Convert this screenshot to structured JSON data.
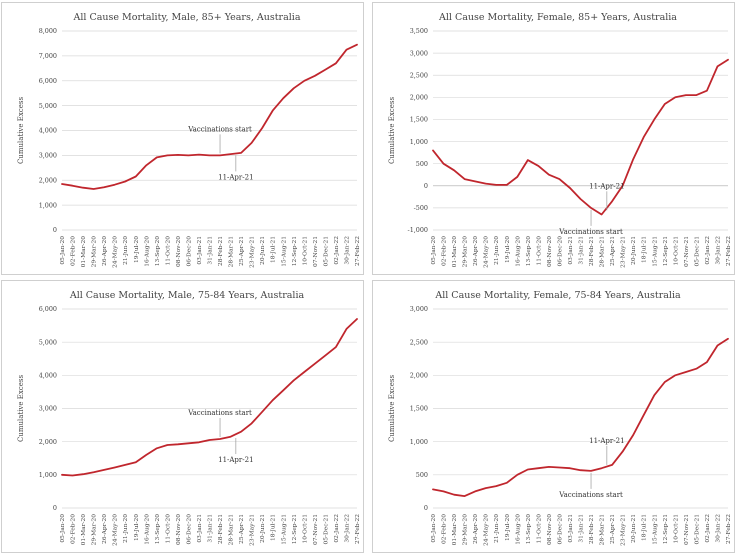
{
  "colors": {
    "series": "#c0262d",
    "grid": "#d9d9d9",
    "text": "#444444"
  },
  "dates": [
    "05-Jan-20",
    "02-Feb-20",
    "01-Mar-20",
    "29-Mar-20",
    "26-Apr-20",
    "24-May-20",
    "21-Jun-20",
    "19-Jul-20",
    "16-Aug-20",
    "13-Sep-20",
    "11-Oct-20",
    "08-Nov-20",
    "06-Dec-20",
    "03-Jan-21",
    "31-Jan-21",
    "28-Feb-21",
    "28-Mar-21",
    "25-Apr-21",
    "23-May-21",
    "20-Jun-21",
    "18-Jul-21",
    "15-Aug-21",
    "12-Sep-21",
    "10-Oct-21",
    "07-Nov-21",
    "05-Dec-21",
    "02-Jan-22",
    "30-Jan-22",
    "27-Feb-22"
  ],
  "chart_data": [
    {
      "type": "line",
      "title": "All Cause Mortality, Male, 85+ Years, Australia",
      "xlabel": "",
      "ylabel": "Cumulative Excess",
      "ylim": [
        0,
        8000
      ],
      "yticks": [
        "0",
        "1,000",
        "2,000",
        "3,000",
        "4,000",
        "5,000",
        "6,000",
        "7,000",
        "8,000"
      ],
      "x": [
        "05-Jan-20",
        "02-Feb-20",
        "01-Mar-20",
        "29-Mar-20",
        "26-Apr-20",
        "24-May-20",
        "21-Jun-20",
        "19-Jul-20",
        "16-Aug-20",
        "13-Sep-20",
        "11-Oct-20",
        "08-Nov-20",
        "06-Dec-20",
        "03-Jan-21",
        "31-Jan-21",
        "28-Feb-21",
        "28-Mar-21",
        "25-Apr-21",
        "23-May-21",
        "20-Jun-21",
        "18-Jul-21",
        "15-Aug-21",
        "12-Sep-21",
        "10-Oct-21",
        "07-Nov-21",
        "05-Dec-21",
        "02-Jan-22",
        "30-Jan-22",
        "27-Feb-22"
      ],
      "values": [
        1850,
        1780,
        1700,
        1650,
        1720,
        1820,
        1950,
        2150,
        2600,
        2920,
        3000,
        3020,
        3000,
        3030,
        3000,
        3000,
        3050,
        3100,
        3500,
        4100,
        4800,
        5300,
        5700,
        6000,
        6200,
        6450,
        6700,
        7250,
        7450
      ],
      "grid": true,
      "legend": "none",
      "annotations": [
        {
          "text": "Vaccinations start",
          "x": "28-Feb-21",
          "y": 3000,
          "position": "above"
        },
        {
          "text": "11-Apr-21",
          "x": "11-Apr-21",
          "y": 3080,
          "position": "below"
        }
      ]
    },
    {
      "type": "line",
      "title": "All Cause Mortality, Female, 85+ Years, Australia",
      "xlabel": "",
      "ylabel": "Cumulative Excess",
      "ylim": [
        -1000,
        3500
      ],
      "yticks": [
        "-1,000",
        "-500",
        "0",
        "500",
        "1,000",
        "1,500",
        "2,000",
        "2,500",
        "3,000",
        "3,500"
      ],
      "x": [
        "05-Jan-20",
        "02-Feb-20",
        "01-Mar-20",
        "29-Mar-20",
        "26-Apr-20",
        "24-May-20",
        "21-Jun-20",
        "19-Jul-20",
        "16-Aug-20",
        "13-Sep-20",
        "11-Oct-20",
        "08-Nov-20",
        "06-Dec-20",
        "03-Jan-21",
        "31-Jan-21",
        "28-Feb-21",
        "28-Mar-21",
        "25-Apr-21",
        "23-May-21",
        "20-Jun-21",
        "18-Jul-21",
        "15-Aug-21",
        "12-Sep-21",
        "10-Oct-21",
        "07-Nov-21",
        "05-Dec-21",
        "02-Jan-22",
        "30-Jan-22",
        "27-Feb-22"
      ],
      "values": [
        800,
        500,
        350,
        150,
        100,
        50,
        20,
        20,
        200,
        580,
        450,
        250,
        150,
        -50,
        -300,
        -500,
        -650,
        -350,
        0,
        600,
        1100,
        1500,
        1850,
        2000,
        2050,
        2050,
        2150,
        2700,
        2850
      ],
      "grid": true,
      "legend": "none",
      "annotations": [
        {
          "text": "11-Apr-21",
          "x": "11-Apr-21",
          "y": -600,
          "position": "above"
        },
        {
          "text": "Vaccinations start",
          "x": "28-Feb-21",
          "y": -500,
          "position": "below"
        }
      ]
    },
    {
      "type": "line",
      "title": "All Cause Mortality, Male, 75-84 Years, Australia",
      "xlabel": "",
      "ylabel": "Cumulative Excess",
      "ylim": [
        0,
        6000
      ],
      "yticks": [
        "0",
        "1,000",
        "2,000",
        "3,000",
        "4,000",
        "5,000",
        "6,000"
      ],
      "x": [
        "05-Jan-20",
        "02-Feb-20",
        "01-Mar-20",
        "29-Mar-20",
        "26-Apr-20",
        "24-May-20",
        "21-Jun-20",
        "19-Jul-20",
        "16-Aug-20",
        "13-Sep-20",
        "11-Oct-20",
        "08-Nov-20",
        "06-Dec-20",
        "03-Jan-21",
        "31-Jan-21",
        "28-Feb-21",
        "28-Mar-21",
        "25-Apr-21",
        "23-May-21",
        "20-Jun-21",
        "18-Jul-21",
        "15-Aug-21",
        "12-Sep-21",
        "10-Oct-21",
        "07-Nov-21",
        "05-Dec-21",
        "02-Jan-22",
        "30-Jan-22",
        "27-Feb-22"
      ],
      "values": [
        1000,
        980,
        1020,
        1080,
        1150,
        1220,
        1300,
        1380,
        1600,
        1800,
        1900,
        1920,
        1950,
        1980,
        2050,
        2080,
        2150,
        2300,
        2550,
        2900,
        3250,
        3550,
        3850,
        4100,
        4350,
        4600,
        4850,
        5400,
        5700
      ],
      "grid": true,
      "legend": "none",
      "annotations": [
        {
          "text": "Vaccinations start",
          "x": "28-Feb-21",
          "y": 2080,
          "position": "above"
        },
        {
          "text": "11-Apr-21",
          "x": "11-Apr-21",
          "y": 2170,
          "position": "below"
        }
      ]
    },
    {
      "type": "line",
      "title": "All Cause Mortality, Female, 75-84 Years, Australia",
      "xlabel": "",
      "ylabel": "Cumulative Excess",
      "ylim": [
        0,
        3000
      ],
      "yticks": [
        "0",
        "500",
        "1,000",
        "1,500",
        "2,000",
        "2,500",
        "3,000"
      ],
      "x": [
        "05-Jan-20",
        "02-Feb-20",
        "01-Mar-20",
        "29-Mar-20",
        "26-Apr-20",
        "24-May-20",
        "21-Jun-20",
        "19-Jul-20",
        "16-Aug-20",
        "13-Sep-20",
        "11-Oct-20",
        "08-Nov-20",
        "06-Dec-20",
        "03-Jan-21",
        "31-Jan-21",
        "28-Feb-21",
        "28-Mar-21",
        "25-Apr-21",
        "23-May-21",
        "20-Jun-21",
        "18-Jul-21",
        "15-Aug-21",
        "12-Sep-21",
        "10-Oct-21",
        "07-Nov-21",
        "05-Dec-21",
        "02-Jan-22",
        "30-Jan-22",
        "27-Feb-22"
      ],
      "values": [
        280,
        250,
        200,
        180,
        250,
        300,
        330,
        380,
        500,
        580,
        600,
        620,
        610,
        600,
        570,
        560,
        600,
        650,
        850,
        1100,
        1400,
        1700,
        1900,
        2000,
        2050,
        2100,
        2200,
        2450,
        2550
      ],
      "grid": true,
      "legend": "none",
      "annotations": [
        {
          "text": "11-Apr-21",
          "x": "11-Apr-21",
          "y": 620,
          "position": "above"
        },
        {
          "text": "Vaccinations start",
          "x": "28-Feb-21",
          "y": 560,
          "position": "below"
        }
      ]
    }
  ]
}
